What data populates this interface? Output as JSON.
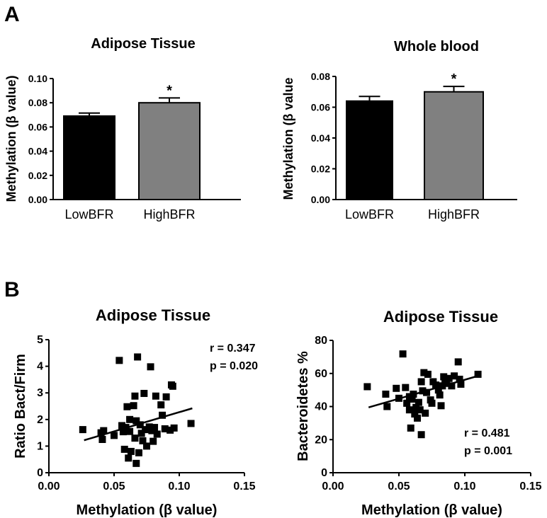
{
  "panel_labels": {
    "a": "A",
    "b": "B"
  },
  "chart_data": [
    {
      "type": "bar",
      "panel": "A",
      "title": "Adipose Tissue",
      "categories": [
        "LowBFR",
        "HighBFR"
      ],
      "values": [
        0.069,
        0.08
      ],
      "errors": [
        0.0025,
        0.004
      ],
      "colors": [
        "#000000",
        "#808080"
      ],
      "significance": [
        "",
        "*"
      ],
      "ylabel": "Methylation (β value)",
      "ylim": [
        0,
        0.1
      ],
      "yticks": [
        0.0,
        0.02,
        0.04,
        0.06,
        0.08,
        0.1
      ],
      "ytick_labels": [
        "0.00",
        "0.02",
        "0.04",
        "0.06",
        "0.08",
        "0.10"
      ]
    },
    {
      "type": "bar",
      "panel": "A",
      "title": "Whole blood",
      "categories": [
        "LowBFR",
        "HighBFR"
      ],
      "values": [
        0.064,
        0.07
      ],
      "errors": [
        0.003,
        0.0035
      ],
      "colors": [
        "#000000",
        "#808080"
      ],
      "significance": [
        "",
        "*"
      ],
      "ylabel": "Methylation (β value",
      "ylim": [
        0,
        0.08
      ],
      "yticks": [
        0.0,
        0.02,
        0.04,
        0.06,
        0.08
      ],
      "ytick_labels": [
        "0.00",
        "0.02",
        "0.04",
        "0.06",
        "0.08"
      ]
    },
    {
      "type": "scatter",
      "panel": "B",
      "title": "Adipose Tissue",
      "xlabel": "Methylation (β value)",
      "ylabel": "Ratio Bact/Firm",
      "xlim": [
        0,
        0.15
      ],
      "ylim": [
        0,
        5
      ],
      "xticks": [
        0,
        0.05,
        0.1,
        0.15
      ],
      "xtick_labels": [
        "0.00",
        "0.05",
        "0.10",
        "0.15"
      ],
      "yticks": [
        0,
        1,
        2,
        3,
        4,
        5
      ],
      "ytick_labels": [
        "0",
        "1",
        "2",
        "3",
        "4",
        "5"
      ],
      "annotation": [
        "r = 0.347",
        "p = 0.020"
      ],
      "fit_line": {
        "x": [
          0.027,
          0.11
        ],
        "y": [
          1.22,
          2.42
        ]
      },
      "points": [
        [
          0.026,
          1.62
        ],
        [
          0.04,
          1.5
        ],
        [
          0.041,
          1.25
        ],
        [
          0.042,
          1.58
        ],
        [
          0.05,
          1.4
        ],
        [
          0.054,
          4.22
        ],
        [
          0.056,
          1.77
        ],
        [
          0.057,
          1.54
        ],
        [
          0.058,
          0.88
        ],
        [
          0.059,
          1.7
        ],
        [
          0.06,
          2.48
        ],
        [
          0.061,
          0.55
        ],
        [
          0.062,
          2.0
        ],
        [
          0.062,
          1.55
        ],
        [
          0.063,
          0.8
        ],
        [
          0.065,
          2.52
        ],
        [
          0.066,
          1.3
        ],
        [
          0.066,
          2.88
        ],
        [
          0.067,
          0.35
        ],
        [
          0.067,
          1.95
        ],
        [
          0.068,
          4.35
        ],
        [
          0.069,
          0.75
        ],
        [
          0.07,
          1.8
        ],
        [
          0.071,
          1.48
        ],
        [
          0.072,
          1.2
        ],
        [
          0.073,
          2.98
        ],
        [
          0.074,
          1.62
        ],
        [
          0.075,
          1.0
        ],
        [
          0.077,
          1.72
        ],
        [
          0.078,
          3.98
        ],
        [
          0.079,
          1.58
        ],
        [
          0.08,
          1.18
        ],
        [
          0.081,
          1.7
        ],
        [
          0.082,
          2.88
        ],
        [
          0.083,
          1.45
        ],
        [
          0.086,
          2.55
        ],
        [
          0.087,
          2.16
        ],
        [
          0.089,
          1.65
        ],
        [
          0.09,
          2.85
        ],
        [
          0.093,
          1.6
        ],
        [
          0.094,
          3.3
        ],
        [
          0.095,
          3.25
        ],
        [
          0.096,
          1.68
        ],
        [
          0.109,
          1.85
        ]
      ]
    },
    {
      "type": "scatter",
      "panel": "B",
      "title": "Adipose Tissue",
      "xlabel": "Methylation (β value)",
      "ylabel": "Bacteroidetes %",
      "xlim": [
        0,
        0.15
      ],
      "ylim": [
        0,
        80
      ],
      "xticks": [
        0,
        0.05,
        0.1,
        0.15
      ],
      "xtick_labels": [
        "0.00",
        "0.05",
        "0.10",
        "0.15"
      ],
      "yticks": [
        0,
        20,
        40,
        60,
        80
      ],
      "ytick_labels": [
        "0",
        "20",
        "40",
        "60",
        "80"
      ],
      "annotation": [
        "r = 0.481",
        "p = 0.001"
      ],
      "fit_line": {
        "x": [
          0.027,
          0.11
        ],
        "y": [
          39.5,
          58.5
        ]
      },
      "points": [
        [
          0.026,
          52.0
        ],
        [
          0.04,
          47.5
        ],
        [
          0.041,
          40.0
        ],
        [
          0.048,
          51.0
        ],
        [
          0.05,
          45.0
        ],
        [
          0.053,
          71.8
        ],
        [
          0.055,
          51.5
        ],
        [
          0.056,
          42.0
        ],
        [
          0.058,
          38.0
        ],
        [
          0.058,
          46.0
        ],
        [
          0.059,
          27.0
        ],
        [
          0.06,
          44.5
        ],
        [
          0.061,
          47.5
        ],
        [
          0.062,
          35.5
        ],
        [
          0.063,
          39.5
        ],
        [
          0.064,
          33.0
        ],
        [
          0.065,
          42.5
        ],
        [
          0.066,
          38.0
        ],
        [
          0.067,
          23.0
        ],
        [
          0.067,
          55.0
        ],
        [
          0.068,
          49.5
        ],
        [
          0.069,
          60.5
        ],
        [
          0.07,
          36.0
        ],
        [
          0.071,
          48.5
        ],
        [
          0.072,
          59.5
        ],
        [
          0.074,
          44.0
        ],
        [
          0.075,
          42.0
        ],
        [
          0.076,
          55.0
        ],
        [
          0.078,
          53.0
        ],
        [
          0.08,
          50.0
        ],
        [
          0.081,
          47.0
        ],
        [
          0.082,
          40.5
        ],
        [
          0.083,
          52.5
        ],
        [
          0.084,
          58.0
        ],
        [
          0.085,
          54.0
        ],
        [
          0.086,
          56.0
        ],
        [
          0.088,
          57.0
        ],
        [
          0.09,
          52.5
        ],
        [
          0.092,
          58.5
        ],
        [
          0.095,
          67.0
        ],
        [
          0.096,
          56.5
        ],
        [
          0.097,
          53.5
        ],
        [
          0.11,
          59.5
        ]
      ]
    }
  ]
}
